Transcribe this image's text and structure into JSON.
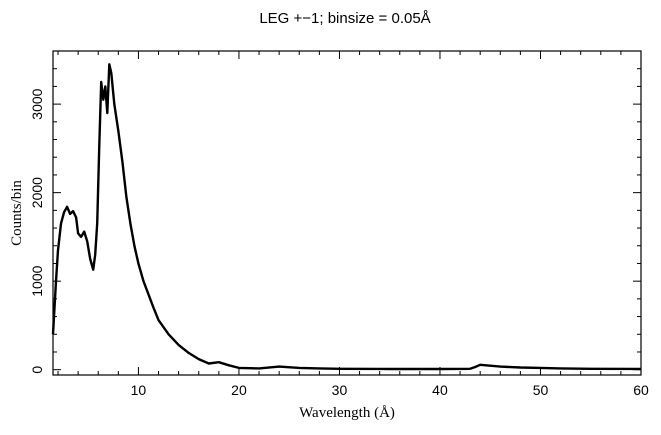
{
  "chart_data": {
    "type": "line",
    "title": "LEG +−1; binsize = 0.05Å",
    "xlabel": "Wavelength (Å)",
    "ylabel": "Counts/bin",
    "xlim": [
      1.5,
      60
    ],
    "ylim": [
      -60,
      3600
    ],
    "x_ticks": [
      10,
      20,
      30,
      40,
      50,
      60
    ],
    "y_ticks": [
      0,
      1000,
      2000,
      3000
    ],
    "grid": false,
    "line_color": "#000000",
    "series": [
      {
        "x": [
          1.5,
          1.8,
          2.0,
          2.3,
          2.6,
          2.9,
          3.2,
          3.5,
          3.8,
          4.0,
          4.3,
          4.6,
          4.9,
          5.2,
          5.5,
          5.7,
          5.9,
          6.1,
          6.3,
          6.5,
          6.7,
          6.9,
          7.1,
          7.3,
          7.6,
          8.0,
          8.4,
          8.8,
          9.2,
          9.6,
          10.0,
          10.5,
          11.0,
          11.5,
          12.0,
          13.0,
          14.0,
          15.0,
          16.0,
          17.0,
          18.0,
          19.0,
          20.0,
          22.0,
          24.0,
          26.0,
          28.0,
          30.0,
          35.0,
          40.0,
          43.0,
          43.5,
          44.0,
          45.0,
          46.0,
          48.0,
          50.0,
          52.0,
          55.0,
          60.0
        ],
        "y": [
          400,
          1000,
          1350,
          1650,
          1780,
          1840,
          1760,
          1790,
          1720,
          1540,
          1500,
          1560,
          1450,
          1250,
          1130,
          1300,
          1650,
          2500,
          3250,
          3050,
          3200,
          2900,
          3450,
          3350,
          3000,
          2700,
          2350,
          1950,
          1650,
          1400,
          1200,
          1000,
          850,
          700,
          560,
          400,
          280,
          190,
          120,
          70,
          85,
          50,
          20,
          15,
          35,
          20,
          15,
          10,
          8,
          8,
          10,
          30,
          55,
          45,
          35,
          25,
          20,
          15,
          10,
          8
        ]
      }
    ]
  }
}
